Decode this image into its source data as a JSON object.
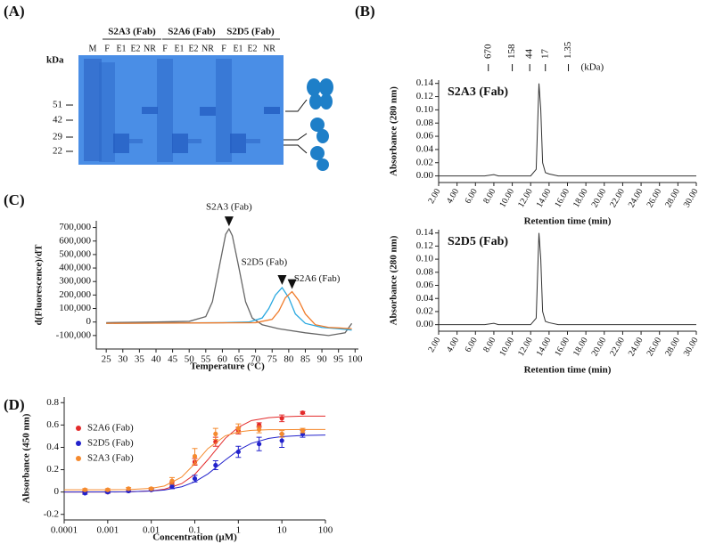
{
  "panels": [
    "(A)",
    "(B)",
    "(C)",
    "(D)"
  ],
  "gel": {
    "groups": [
      "S2A3 (Fab)",
      "S2A6 (Fab)",
      "S2D5 (Fab)"
    ],
    "lanes": [
      "M",
      "F",
      "E1",
      "E2",
      "NR",
      "F",
      "E1",
      "E2",
      "NR",
      "F",
      "E1",
      "E2",
      "NR"
    ],
    "unit": "kDa",
    "markers": [
      51,
      42,
      29,
      22
    ]
  },
  "chart_data": [
    {
      "type": "line",
      "title": "S2A3 (Fab)",
      "x_label": "Retention time (min)",
      "y_label": "Absorbance (280 nm)",
      "color": "#333333",
      "x": [
        2,
        7,
        8,
        8.5,
        9,
        12,
        12.6,
        12.9,
        13.1,
        13.3,
        13.6,
        14,
        15,
        17,
        30
      ],
      "values": [
        0,
        0,
        0.002,
        0,
        0,
        0,
        0.01,
        0.14,
        0.1,
        0.02,
        0.005,
        0.003,
        0,
        0,
        0
      ],
      "xlim": [
        2,
        30
      ],
      "ylim": [
        -0.01,
        0.145
      ],
      "xticks": [
        {
          "value": 2,
          "label": "2.00"
        },
        {
          "value": 4,
          "label": "4.00"
        },
        {
          "value": 6,
          "label": "6.00"
        },
        {
          "value": 8,
          "label": "8.00"
        },
        {
          "value": 10,
          "label": "10.00"
        },
        {
          "value": 12,
          "label": "12.00"
        },
        {
          "value": 14,
          "label": "14.00"
        },
        {
          "value": 16,
          "label": "16.00"
        },
        {
          "value": 18,
          "label": "18.00"
        },
        {
          "value": 20,
          "label": "20.00"
        },
        {
          "value": 22,
          "label": "22.00"
        },
        {
          "value": 24,
          "label": "24.00"
        },
        {
          "value": 26,
          "label": "26.00"
        },
        {
          "value": 28,
          "label": "28.00"
        },
        {
          "value": 30,
          "label": "30.00"
        }
      ],
      "yticks": [
        {
          "value": 0,
          "label": "0.00"
        },
        {
          "value": 0.02,
          "label": "0.02"
        },
        {
          "value": 0.04,
          "label": "0.04"
        },
        {
          "value": 0.06,
          "label": "0.06"
        },
        {
          "value": 0.08,
          "label": "0.08"
        },
        {
          "value": 0.1,
          "label": "0.10"
        },
        {
          "value": 0.12,
          "label": "0.12"
        },
        {
          "value": 0.14,
          "label": "0.14"
        }
      ],
      "standards": {
        "x": [
          7.4,
          10,
          11.9,
          13.6,
          16.1
        ],
        "labels": [
          670,
          158,
          44,
          17,
          1.35
        ],
        "unit": "(kDa)"
      }
    },
    {
      "type": "line",
      "title": "S2D5 (Fab)",
      "x_label": "Retention time (min)",
      "y_label": "Absorbance (280 nm)",
      "color": "#333333",
      "x": [
        2,
        7,
        8,
        8.5,
        9,
        12,
        12.6,
        12.9,
        13.1,
        13.3,
        13.6,
        14,
        15,
        17,
        30
      ],
      "values": [
        0,
        0,
        0.002,
        0,
        0,
        0,
        0.01,
        0.14,
        0.1,
        0.02,
        0.005,
        0.003,
        0,
        0,
        0
      ],
      "xlim": [
        2,
        30
      ],
      "ylim": [
        -0.01,
        0.145
      ],
      "xticks": [
        {
          "value": 2,
          "label": "2.00"
        },
        {
          "value": 4,
          "label": "4.00"
        },
        {
          "value": 6,
          "label": "6.00"
        },
        {
          "value": 8,
          "label": "8.00"
        },
        {
          "value": 10,
          "label": "10.00"
        },
        {
          "value": 12,
          "label": "12.00"
        },
        {
          "value": 14,
          "label": "14.00"
        },
        {
          "value": 16,
          "label": "16.00"
        },
        {
          "value": 18,
          "label": "18.00"
        },
        {
          "value": 20,
          "label": "20.00"
        },
        {
          "value": 22,
          "label": "22.00"
        },
        {
          "value": 24,
          "label": "24.00"
        },
        {
          "value": 26,
          "label": "26.00"
        },
        {
          "value": 28,
          "label": "28.00"
        },
        {
          "value": 30,
          "label": "30.00"
        }
      ],
      "yticks": [
        {
          "value": 0,
          "label": "0.00"
        },
        {
          "value": 0.02,
          "label": "0.02"
        },
        {
          "value": 0.04,
          "label": "0.04"
        },
        {
          "value": 0.06,
          "label": "0.06"
        },
        {
          "value": 0.08,
          "label": "0.08"
        },
        {
          "value": 0.1,
          "label": "0.10"
        },
        {
          "value": 0.12,
          "label": "0.12"
        },
        {
          "value": 0.14,
          "label": "0.14"
        }
      ]
    },
    {
      "type": "line",
      "x_label": "Temperature (°C)",
      "y_label": "d(Fluorescence)/dT",
      "label_series": true,
      "series": [
        {
          "name": "S2A3 (Fab)",
          "color": "#666666",
          "x": [
            25,
            40,
            50,
            55,
            57,
            59,
            61,
            62,
            63,
            65,
            67,
            69,
            72,
            77,
            85,
            92,
            97,
            99
          ],
          "values": [
            -5000,
            0,
            5000,
            40000,
            150000,
            400000,
            650000,
            690000,
            640000,
            400000,
            150000,
            30000,
            -20000,
            -50000,
            -80000,
            -100000,
            -80000,
            -10000
          ]
        },
        {
          "name": "S2D5 (Fab)",
          "color": "#29a8e0",
          "x": [
            25,
            60,
            68,
            72,
            74,
            76,
            78,
            80,
            82,
            85,
            90,
            95,
            99
          ],
          "values": [
            -10000,
            -5000,
            0,
            30000,
            100000,
            200000,
            255000,
            180000,
            60000,
            -10000,
            -40000,
            -50000,
            -60000
          ]
        },
        {
          "name": "S2A6 (Fab)",
          "color": "#f07b2a",
          "x": [
            25,
            70,
            75,
            77,
            79,
            81,
            83,
            85,
            88,
            92,
            96,
            99
          ],
          "values": [
            -10000,
            -5000,
            20000,
            80000,
            180000,
            225000,
            160000,
            60000,
            -20000,
            -40000,
            -45000,
            -50000
          ]
        }
      ],
      "xlim": [
        22,
        101
      ],
      "ylim": [
        -200000,
        750000
      ],
      "xticks": [
        25,
        30,
        35,
        40,
        45,
        50,
        55,
        60,
        65,
        70,
        75,
        80,
        85,
        90,
        95,
        100
      ],
      "yticks": [
        {
          "value": -100000,
          "label": "-100,000"
        },
        0,
        {
          "value": 100000,
          "label": "100,000"
        },
        {
          "value": 200000,
          "label": "200,000"
        },
        {
          "value": 300000,
          "label": "300,000"
        },
        {
          "value": 400000,
          "label": "400,000"
        },
        {
          "value": 500000,
          "label": "500,000"
        },
        {
          "value": 600000,
          "label": "600,000"
        },
        {
          "value": 700000,
          "label": "700,000"
        }
      ]
    },
    {
      "type": "scatter",
      "x_label": "Concentration (µM)",
      "y_label": "Absorbance (450 nm)",
      "log_x": true,
      "legend": "upper left",
      "fit_x": [
        0.0001,
        0.001,
        0.003,
        0.01,
        0.02,
        0.05,
        0.1,
        0.2,
        0.5,
        1,
        2,
        5,
        10,
        30,
        100
      ],
      "series": [
        {
          "name": "S2A6 (Fab)",
          "color": "#e32b2b",
          "x": [
            0.0003,
            0.001,
            0.003,
            0.01,
            0.03,
            0.1,
            0.3,
            1,
            3,
            10,
            30
          ],
          "values": [
            0,
            0,
            0.01,
            0.02,
            0.07,
            0.27,
            0.45,
            0.55,
            0.6,
            0.66,
            0.71
          ],
          "errors": [
            0.01,
            0.01,
            0.01,
            0.01,
            0.02,
            0.03,
            0.04,
            0.03,
            0.02,
            0.03,
            0.01
          ],
          "fit_values": [
            0,
            0,
            0.002,
            0.01,
            0.025,
            0.075,
            0.158,
            0.29,
            0.48,
            0.58,
            0.64,
            0.666,
            0.674,
            0.68,
            0.68
          ]
        },
        {
          "name": "S2D5 (Fab)",
          "color": "#2222cc",
          "x": [
            0.0003,
            0.001,
            0.003,
            0.01,
            0.03,
            0.1,
            0.3,
            1,
            3,
            10,
            30
          ],
          "values": [
            -0.01,
            0,
            0.01,
            0.02,
            0.05,
            0.12,
            0.24,
            0.36,
            0.43,
            0.46,
            0.52
          ],
          "errors": [
            0.01,
            0.01,
            0.01,
            0.01,
            0.02,
            0.03,
            0.04,
            0.05,
            0.06,
            0.06,
            0.03
          ],
          "fit_values": [
            0,
            0.001,
            0.002,
            0.009,
            0.018,
            0.047,
            0.091,
            0.162,
            0.286,
            0.374,
            0.436,
            0.48,
            0.496,
            0.506,
            0.51
          ]
        },
        {
          "name": "S2A3 (Fab)",
          "color": "#f58a2e",
          "x": [
            0.0003,
            0.001,
            0.003,
            0.01,
            0.03,
            0.1,
            0.3,
            1,
            3,
            10,
            30
          ],
          "values": [
            0.02,
            0.02,
            0.03,
            0.03,
            0.1,
            0.32,
            0.52,
            0.57,
            0.56,
            0.52,
            0.55
          ],
          "errors": [
            0.01,
            0.01,
            0.01,
            0.01,
            0.03,
            0.07,
            0.05,
            0.04,
            0.03,
            0.03,
            0.02
          ],
          "fit_values": [
            0.02,
            0.02,
            0.022,
            0.033,
            0.054,
            0.134,
            0.254,
            0.389,
            0.503,
            0.538,
            0.552,
            0.558,
            0.558,
            0.56,
            0.56
          ]
        }
      ],
      "xlim": [
        0.0001,
        100
      ],
      "ylim": [
        -0.25,
        0.85
      ],
      "xticks": [
        0.0001,
        0.001,
        0.01,
        0.1,
        1,
        10,
        100
      ],
      "yticks": [
        -0.2,
        0,
        0.2,
        0.4,
        0.6,
        0.8
      ]
    }
  ]
}
